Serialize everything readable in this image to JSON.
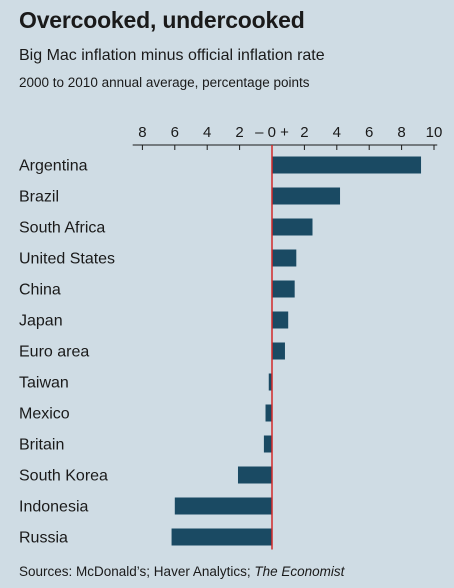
{
  "title": "Overcooked, undercooked",
  "subtitle": "Big Mac inflation minus official inflation rate",
  "subtitle2": "2000 to 2010 annual average, percentage points",
  "source": {
    "prefix": "Sources: McDonald’s; Haver Analytics; ",
    "italic": "The Economist"
  },
  "colors": {
    "background": "#cfdce4",
    "bar": "#1a4a63",
    "zero_line": "#d22a2a",
    "axis": "#1a1a1a"
  },
  "chart_data": {
    "type": "bar",
    "orientation": "horizontal",
    "categories": [
      "Argentina",
      "Brazil",
      "South Africa",
      "United States",
      "China",
      "Japan",
      "Euro area",
      "Taiwan",
      "Mexico",
      "Britain",
      "South Korea",
      "Indonesia",
      "Russia"
    ],
    "values": [
      9.2,
      4.2,
      2.5,
      1.5,
      1.4,
      1.0,
      0.8,
      -0.2,
      -0.4,
      -0.5,
      -2.1,
      -6.0,
      -6.2
    ],
    "xlim": [
      -8.6,
      10.2
    ],
    "x_ticks": [
      {
        "value": -8,
        "label": "8"
      },
      {
        "value": -6,
        "label": "6"
      },
      {
        "value": -4,
        "label": "4"
      },
      {
        "value": -2,
        "label": "2"
      },
      {
        "value": 0,
        "label": "– 0 +"
      },
      {
        "value": 2,
        "label": "2"
      },
      {
        "value": 4,
        "label": "4"
      },
      {
        "value": 6,
        "label": "6"
      },
      {
        "value": 8,
        "label": "8"
      },
      {
        "value": 10,
        "label": "10"
      }
    ],
    "xlabel": "",
    "ylabel": ""
  }
}
